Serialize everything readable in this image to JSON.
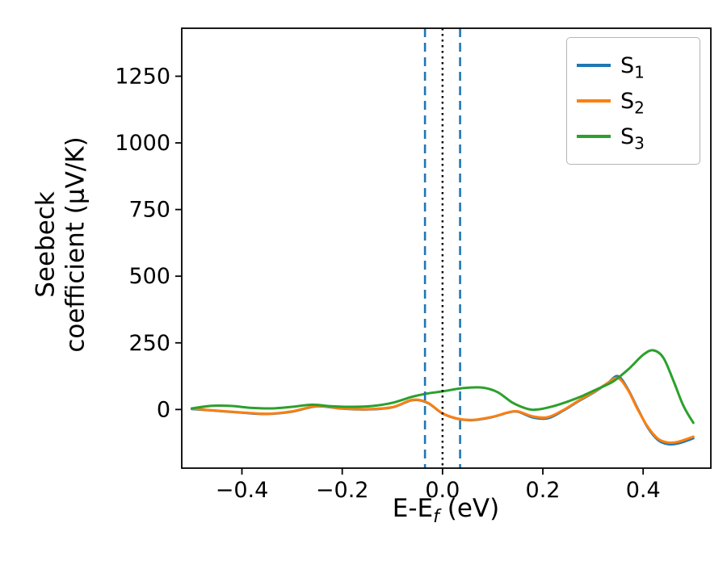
{
  "figure": {
    "background": "#ffffff",
    "xlabel": {
      "pre": "E-E",
      "sub": "f",
      "post": " (eV)"
    },
    "ylabel": {
      "line1": "Seebeck",
      "line2": "coefficient  (μV/K)"
    }
  },
  "chart_data": {
    "type": "line",
    "title": "",
    "xlabel": "E-E_f (eV)",
    "ylabel": "Seebeck coefficient (μV/K)",
    "xlim": [
      -0.52,
      0.535
    ],
    "ylim": [
      -220,
      1430
    ],
    "grid": false,
    "legend_position": "upper right",
    "xticks": [
      {
        "v": -0.4,
        "label": "−0.4"
      },
      {
        "v": -0.2,
        "label": "−0.2"
      },
      {
        "v": 0.0,
        "label": "0.0"
      },
      {
        "v": 0.2,
        "label": "0.2"
      },
      {
        "v": 0.4,
        "label": "0.4"
      }
    ],
    "yticks": [
      {
        "v": 0,
        "label": "0"
      },
      {
        "v": 250,
        "label": "250"
      },
      {
        "v": 500,
        "label": "500"
      },
      {
        "v": 750,
        "label": "750"
      },
      {
        "v": 1000,
        "label": "1000"
      },
      {
        "v": 1250,
        "label": "1250"
      }
    ],
    "vlines": [
      {
        "x": -0.035,
        "color": "#1f77b4",
        "style": "dashed",
        "width": 2.6
      },
      {
        "x": 0.0,
        "color": "#000000",
        "style": "dotted",
        "width": 2.4
      },
      {
        "x": 0.035,
        "color": "#1f77b4",
        "style": "dashed",
        "width": 2.6
      }
    ],
    "series": [
      {
        "name": "S1",
        "label_main": "S",
        "label_sub": "1",
        "color": "#1f77b4",
        "points": [
          [
            -0.5,
            2
          ],
          [
            -0.45,
            -5
          ],
          [
            -0.4,
            -12
          ],
          [
            -0.35,
            -17
          ],
          [
            -0.3,
            -8
          ],
          [
            -0.25,
            12
          ],
          [
            -0.2,
            3
          ],
          [
            -0.15,
            0
          ],
          [
            -0.1,
            8
          ],
          [
            -0.06,
            35
          ],
          [
            -0.03,
            25
          ],
          [
            0.0,
            -15
          ],
          [
            0.03,
            -35
          ],
          [
            0.06,
            -40
          ],
          [
            0.1,
            -28
          ],
          [
            0.13,
            -12
          ],
          [
            0.15,
            -8
          ],
          [
            0.18,
            -30
          ],
          [
            0.21,
            -33
          ],
          [
            0.24,
            -5
          ],
          [
            0.27,
            30
          ],
          [
            0.3,
            62
          ],
          [
            0.33,
            100
          ],
          [
            0.35,
            125
          ],
          [
            0.37,
            75
          ],
          [
            0.39,
            0
          ],
          [
            0.41,
            -70
          ],
          [
            0.43,
            -115
          ],
          [
            0.45,
            -130
          ],
          [
            0.47,
            -127
          ],
          [
            0.5,
            -108
          ]
        ]
      },
      {
        "name": "S2",
        "label_main": "S",
        "label_sub": "2",
        "color": "#ff7f0e",
        "points": [
          [
            -0.5,
            3
          ],
          [
            -0.45,
            -4
          ],
          [
            -0.4,
            -11
          ],
          [
            -0.35,
            -16
          ],
          [
            -0.3,
            -7
          ],
          [
            -0.25,
            13
          ],
          [
            -0.2,
            4
          ],
          [
            -0.15,
            1
          ],
          [
            -0.1,
            9
          ],
          [
            -0.06,
            36
          ],
          [
            -0.03,
            26
          ],
          [
            0.0,
            -14
          ],
          [
            0.03,
            -34
          ],
          [
            0.06,
            -39
          ],
          [
            0.1,
            -27
          ],
          [
            0.13,
            -11
          ],
          [
            0.15,
            -7
          ],
          [
            0.18,
            -26
          ],
          [
            0.21,
            -29
          ],
          [
            0.24,
            -3
          ],
          [
            0.27,
            32
          ],
          [
            0.3,
            64
          ],
          [
            0.33,
            100
          ],
          [
            0.35,
            118
          ],
          [
            0.37,
            72
          ],
          [
            0.39,
            -3
          ],
          [
            0.41,
            -67
          ],
          [
            0.43,
            -110
          ],
          [
            0.45,
            -124
          ],
          [
            0.47,
            -121
          ],
          [
            0.5,
            -102
          ]
        ]
      },
      {
        "name": "S3",
        "label_main": "S",
        "label_sub": "3",
        "color": "#2ca02c",
        "points": [
          [
            -0.5,
            4
          ],
          [
            -0.46,
            14
          ],
          [
            -0.42,
            13
          ],
          [
            -0.38,
            6
          ],
          [
            -0.34,
            4
          ],
          [
            -0.3,
            10
          ],
          [
            -0.26,
            18
          ],
          [
            -0.22,
            12
          ],
          [
            -0.18,
            10
          ],
          [
            -0.14,
            13
          ],
          [
            -0.1,
            25
          ],
          [
            -0.06,
            48
          ],
          [
            -0.03,
            60
          ],
          [
            0.0,
            68
          ],
          [
            0.04,
            80
          ],
          [
            0.08,
            82
          ],
          [
            0.11,
            65
          ],
          [
            0.14,
            25
          ],
          [
            0.17,
            2
          ],
          [
            0.19,
            0
          ],
          [
            0.22,
            12
          ],
          [
            0.25,
            30
          ],
          [
            0.28,
            52
          ],
          [
            0.31,
            78
          ],
          [
            0.34,
            105
          ],
          [
            0.37,
            150
          ],
          [
            0.4,
            205
          ],
          [
            0.42,
            222
          ],
          [
            0.44,
            195
          ],
          [
            0.46,
            110
          ],
          [
            0.48,
            15
          ],
          [
            0.5,
            -50
          ]
        ]
      }
    ]
  }
}
